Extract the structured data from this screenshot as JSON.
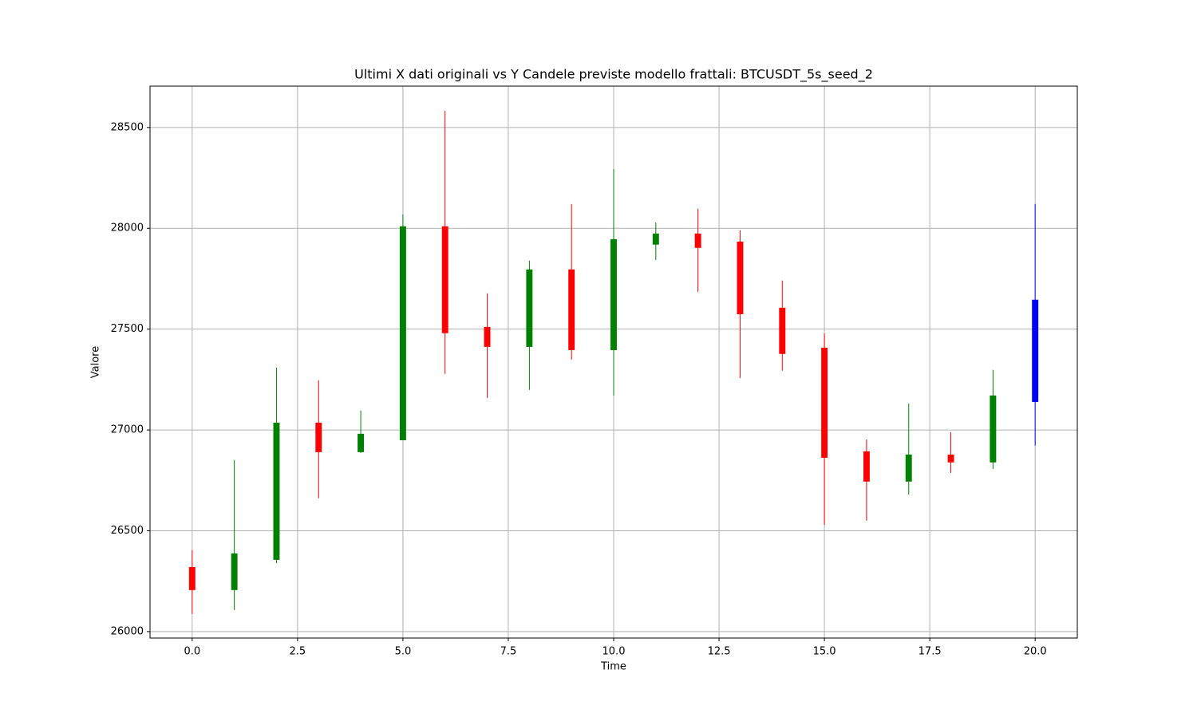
{
  "chart_data": {
    "type": "candlestick",
    "title": "Ultimi X dati originali vs Y Candele previste modello frattali: BTCUSDT_5s_seed_2",
    "x_label": "Time",
    "y_label": "Valore",
    "x": [
      0,
      1,
      2,
      3,
      4,
      5,
      6,
      7,
      8,
      9,
      10,
      11,
      12,
      13,
      14,
      15,
      16,
      17,
      18,
      19,
      20
    ],
    "open": [
      26320,
      26206,
      26356,
      27036,
      26890,
      26949,
      28010,
      27511,
      27412,
      27796,
      27396,
      27919,
      27974,
      27934,
      27606,
      27408,
      26894,
      26744,
      26878,
      26839,
      27139
    ],
    "high": [
      26404,
      26851,
      27309,
      27246,
      27096,
      28069,
      28583,
      27677,
      27840,
      28120,
      28294,
      28029,
      28097,
      27990,
      27741,
      27479,
      26953,
      27131,
      26989,
      27298,
      28120
    ],
    "low": [
      26087,
      26107,
      26340,
      26661,
      26886,
      26949,
      27278,
      27159,
      27199,
      27349,
      27171,
      27843,
      27685,
      27258,
      27294,
      26530,
      26550,
      26680,
      26787,
      26807,
      26922
    ],
    "close": [
      26206,
      26388,
      27036,
      26890,
      26981,
      28010,
      27480,
      27412,
      27796,
      27396,
      27946,
      27974,
      27903,
      27574,
      27377,
      26862,
      26744,
      26878,
      26839,
      27171,
      27646
    ],
    "colors": [
      "red",
      "green",
      "green",
      "red",
      "green",
      "green",
      "red",
      "red",
      "green",
      "red",
      "green",
      "green",
      "red",
      "red",
      "red",
      "red",
      "red",
      "green",
      "red",
      "green",
      "blue"
    ],
    "xlim": [
      -1,
      21
    ],
    "xticks": [
      {
        "value": 0,
        "label": "0.0"
      },
      2.5,
      {
        "value": 5,
        "label": "5.0"
      },
      7.5,
      {
        "value": 10,
        "label": "10.0"
      },
      12.5,
      {
        "value": 15,
        "label": "15.0"
      },
      17.5,
      {
        "value": 20,
        "label": "20.0"
      }
    ],
    "ylim": [
      25968,
      28705
    ],
    "yticks": [
      26000,
      26500,
      27000,
      27500,
      28000,
      28500
    ],
    "grid": true
  }
}
